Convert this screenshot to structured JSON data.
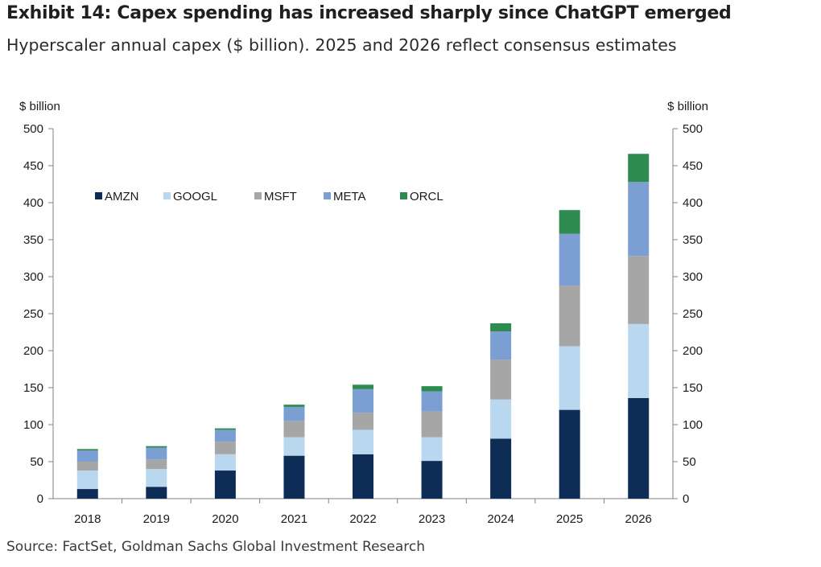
{
  "header": {
    "title": "Exhibit 14: Capex spending has increased sharply since ChatGPT emerged",
    "subtitle": "Hyperscaler annual capex ($ billion). 2025 and 2026 reflect consensus estimates"
  },
  "footer": {
    "source": "Source: FactSet, Goldman Sachs Global Investment Research"
  },
  "chart_data": {
    "type": "bar",
    "stacked": true,
    "ylabel_left": "$ billion",
    "ylabel_right": "$ billion",
    "ylim": [
      0,
      500
    ],
    "yticks": [
      0,
      50,
      100,
      150,
      200,
      250,
      300,
      350,
      400,
      450,
      500
    ],
    "categories": [
      "2018",
      "2019",
      "2020",
      "2021",
      "2022",
      "2023",
      "2024",
      "2025",
      "2026"
    ],
    "legend_position": "top-left",
    "series": [
      {
        "name": "AMZN",
        "color": "#0d2d57",
        "values": [
          13,
          16,
          38,
          58,
          60,
          51,
          81,
          120,
          136
        ]
      },
      {
        "name": "GOOGL",
        "color": "#b9d7ef",
        "values": [
          25,
          24,
          22,
          25,
          33,
          32,
          53,
          86,
          100
        ]
      },
      {
        "name": "MSFT",
        "color": "#a6a6a6",
        "values": [
          12,
          13,
          17,
          22,
          23,
          35,
          54,
          82,
          92
        ]
      },
      {
        "name": "META",
        "color": "#7b9fd2",
        "values": [
          15,
          16,
          16,
          19,
          32,
          27,
          38,
          70,
          100
        ]
      },
      {
        "name": "ORCL",
        "color": "#2e8b4f",
        "values": [
          2,
          2,
          2,
          3,
          6,
          7,
          11,
          32,
          38
        ]
      }
    ]
  }
}
